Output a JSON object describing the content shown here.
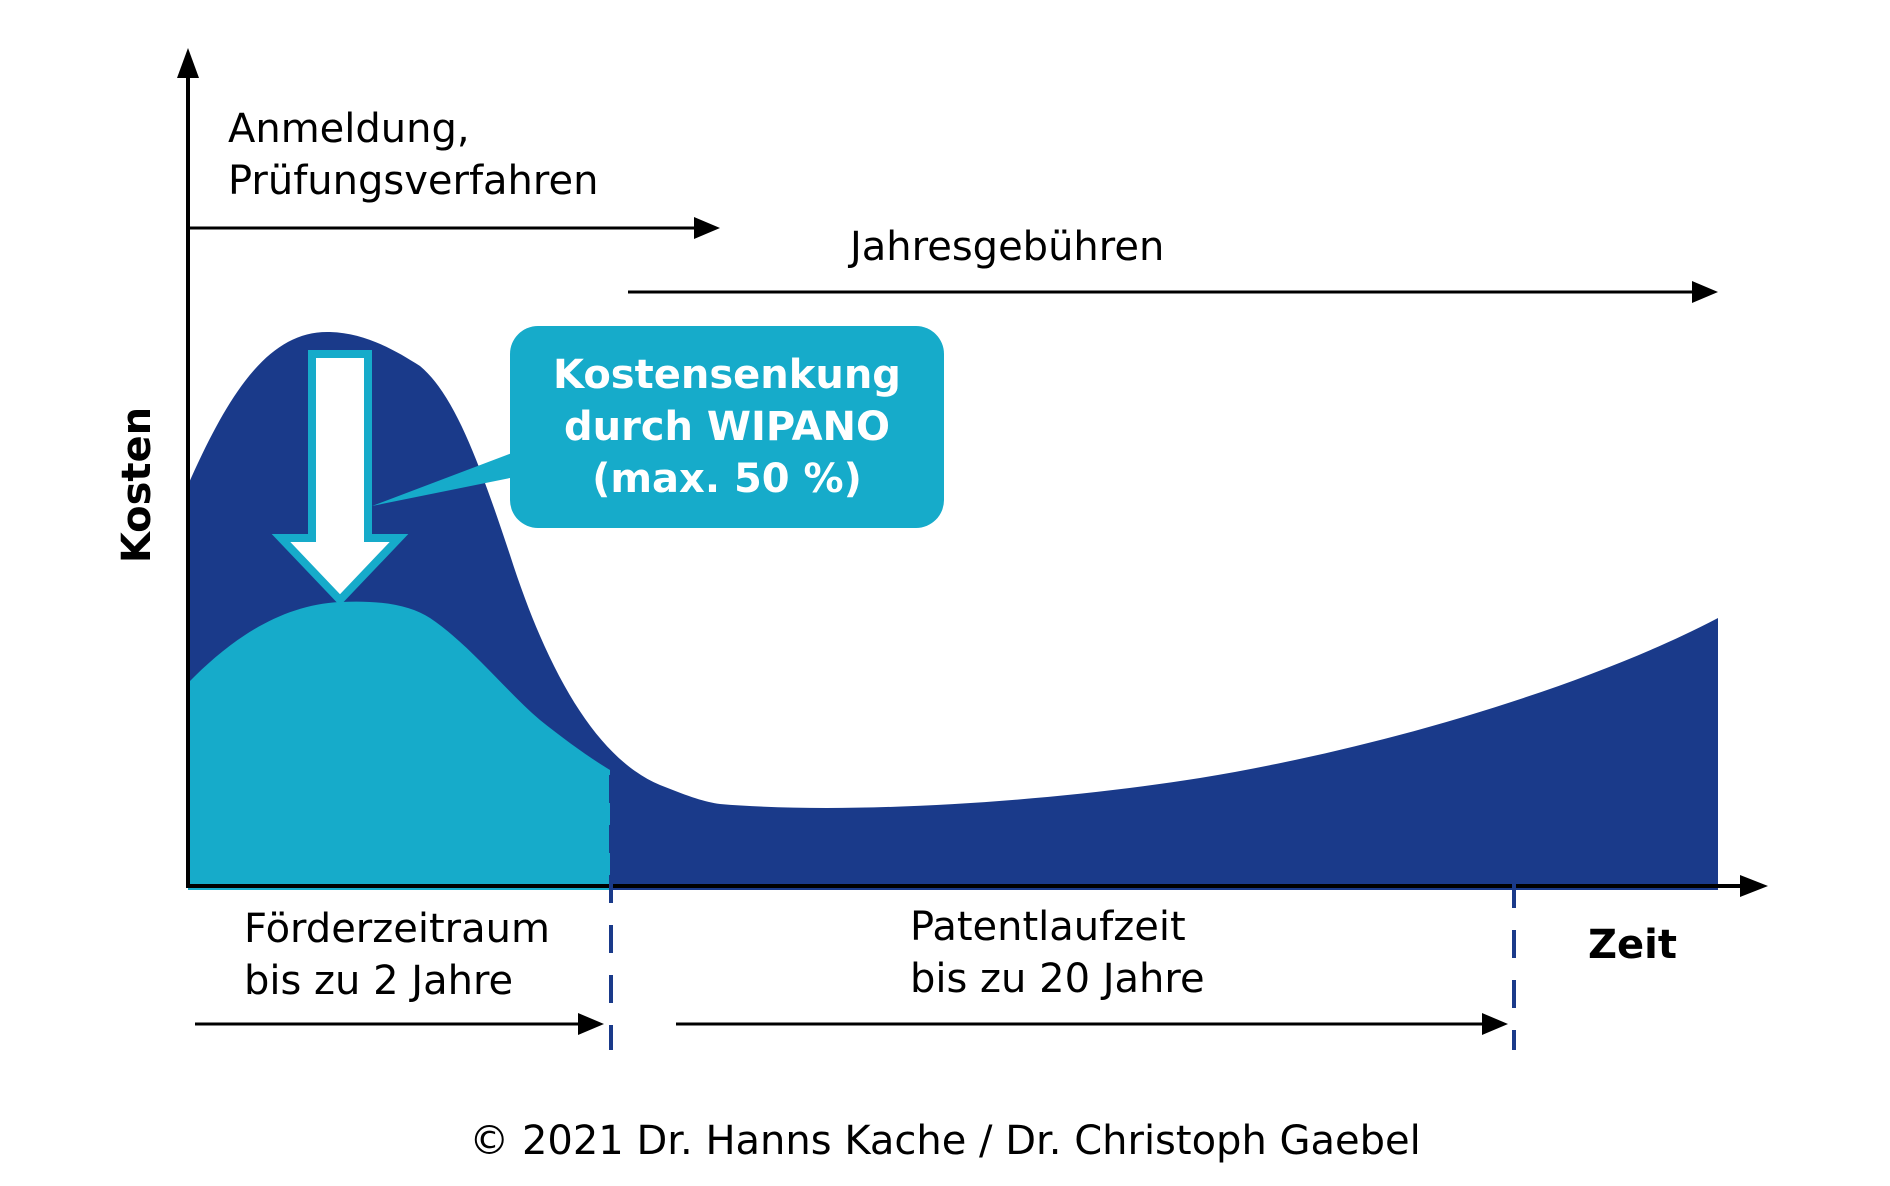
{
  "colors": {
    "dark_blue": "#1a3a8a",
    "light_blue": "#16abca",
    "axis": "#000000",
    "white": "#ffffff",
    "dashed_line": "#1a3a8a"
  },
  "labels": {
    "y_axis": "Kosten",
    "x_axis": "Zeit",
    "phase_top_line1": "Anmeldung,",
    "phase_top_line2": "Prüfungsverfahren",
    "annual_fees": "Jahresgebühren",
    "callout_line1": "Kostensenkung",
    "callout_line2": "durch WIPANO",
    "callout_line3": "(max. 50 %)",
    "funding_line1": "Förderzeitraum",
    "funding_line2": "bis zu 2 Jahre",
    "term_line1": "Patentlaufzeit",
    "term_line2": "bis zu 20 Jahre",
    "copyright": "© 2021 Dr. Hanns Kache / Dr. Christoph Gaebel"
  },
  "icons": {
    "reduction_arrow": "down-arrow-icon"
  }
}
